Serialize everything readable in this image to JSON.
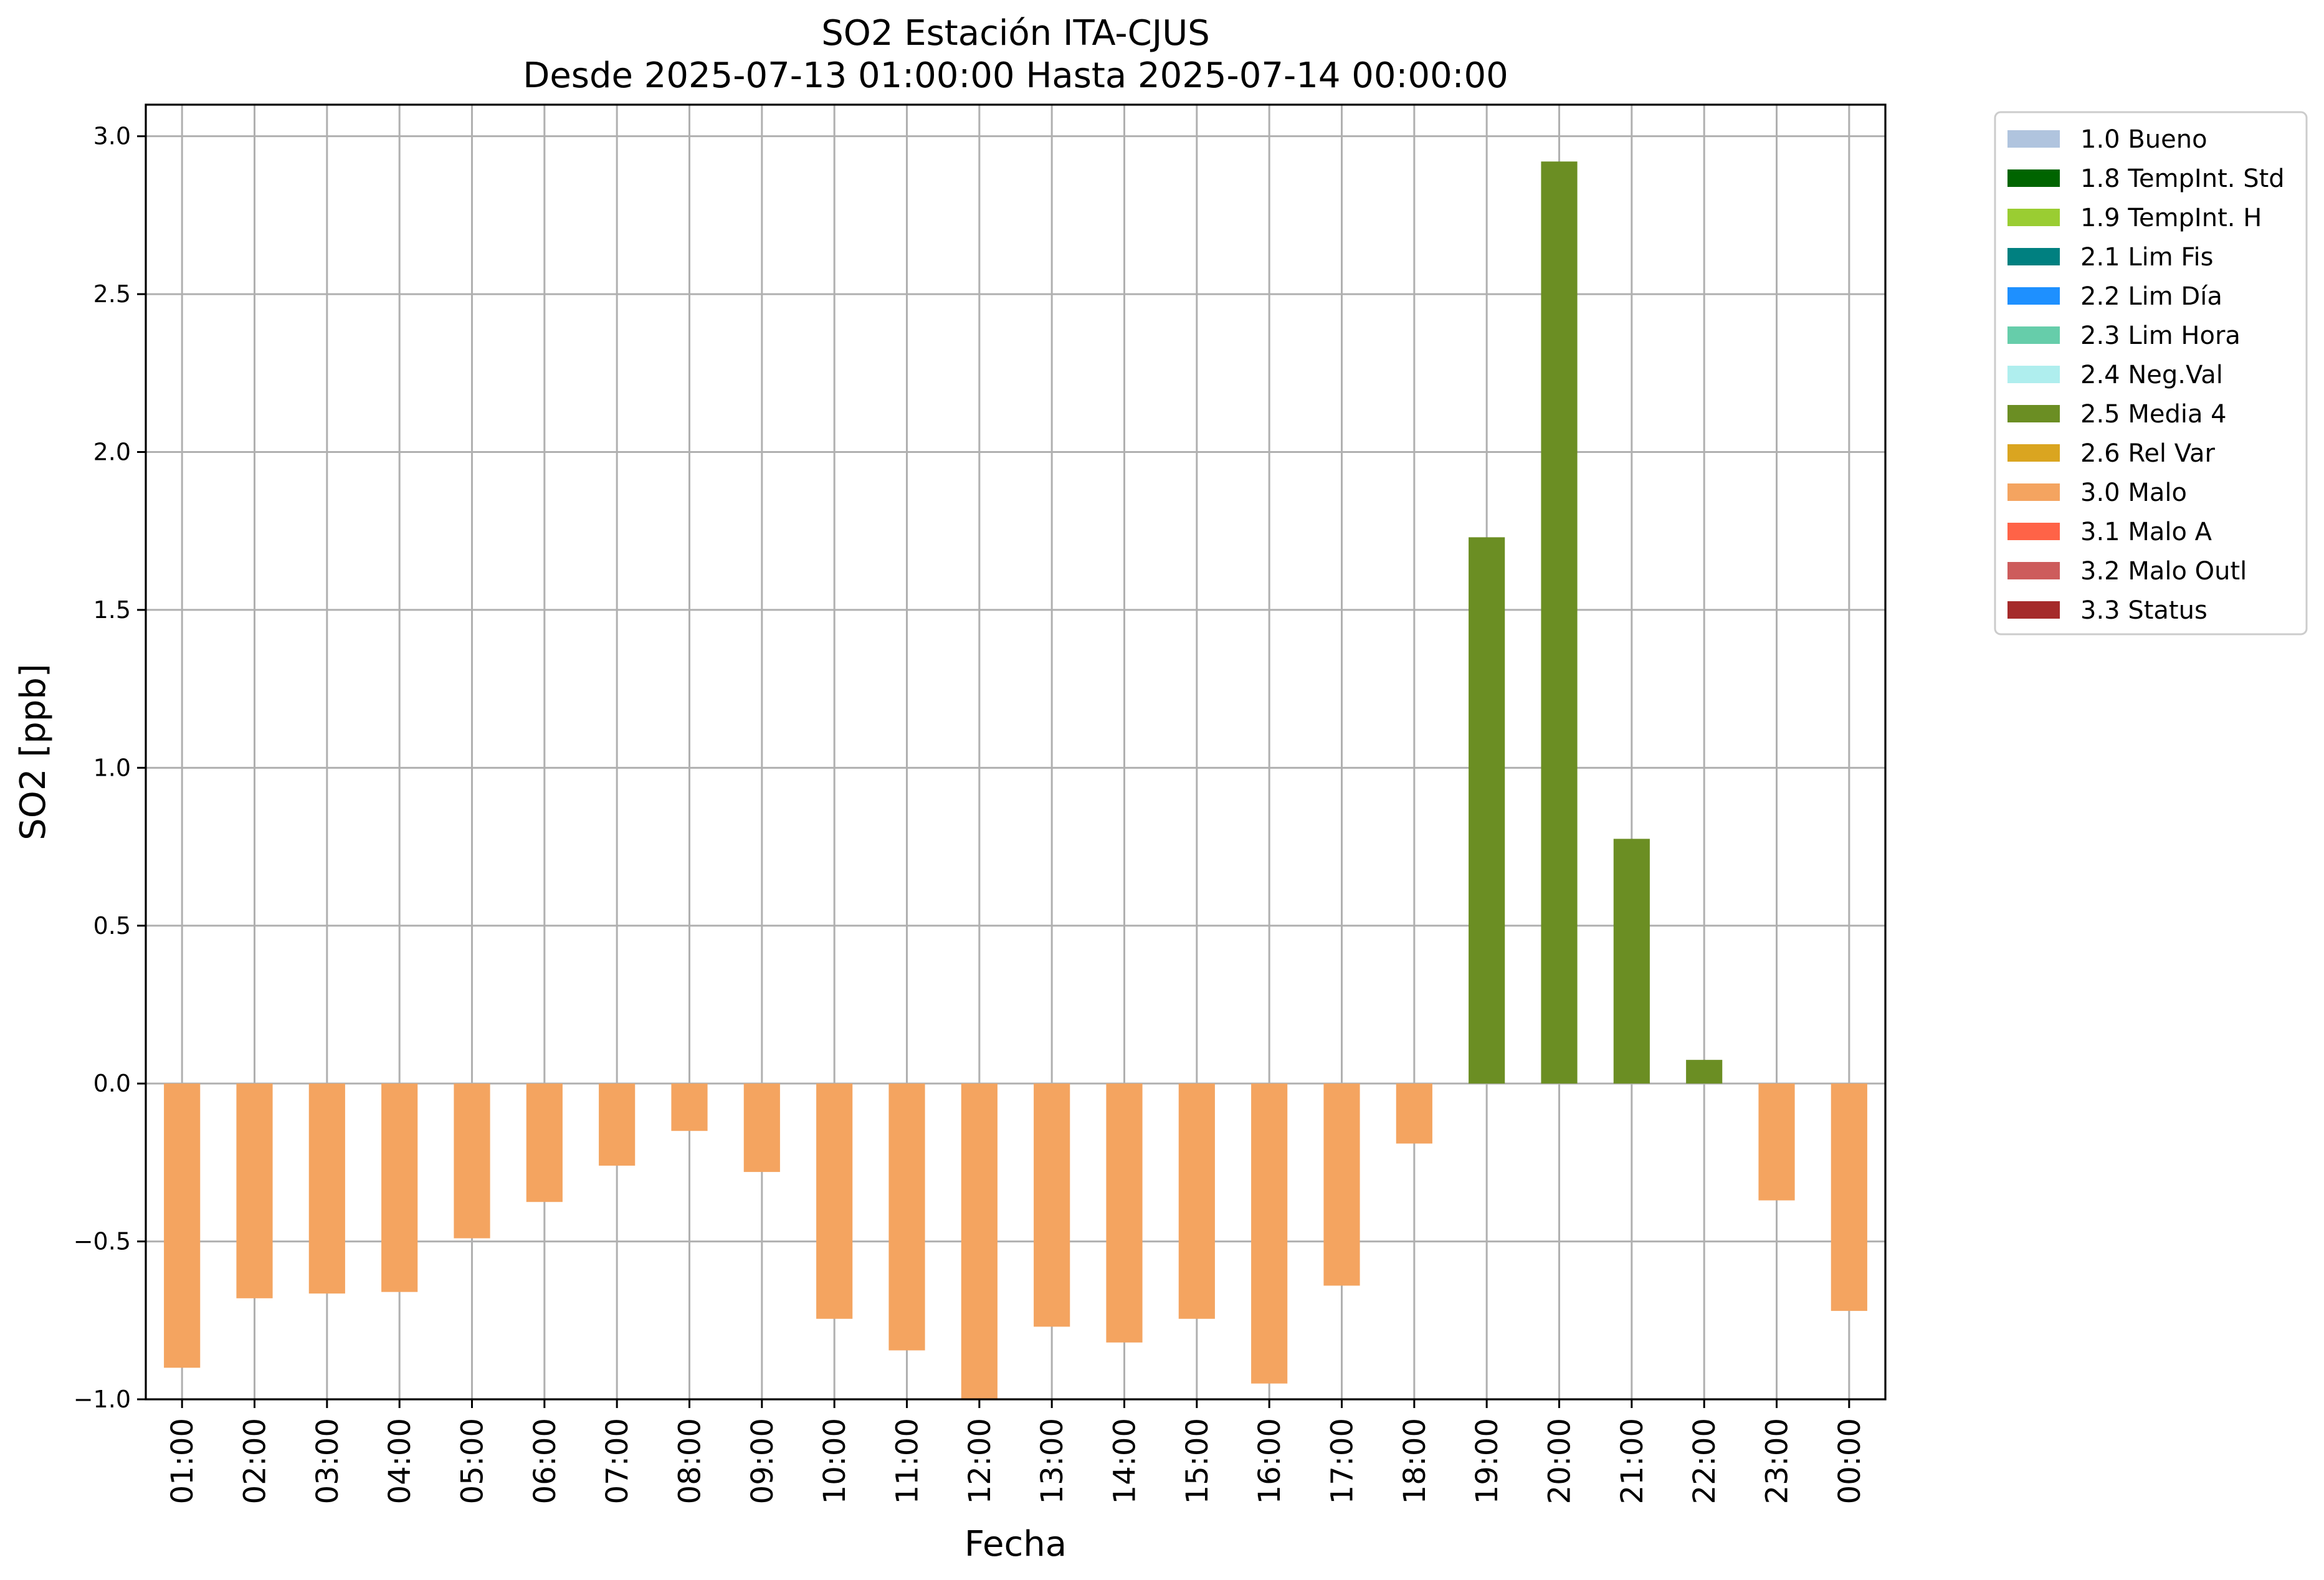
{
  "chart_data": {
    "type": "bar",
    "title_lines": [
      "SO2 Estación ITA-CJUS",
      "Desde 2025-07-13 01:00:00 Hasta 2025-07-14 00:00:00"
    ],
    "xlabel": "Fecha",
    "ylabel": "SO2 [ppb]",
    "ylim": [
      -1.0,
      3.1
    ],
    "yticks": [
      "−1.0",
      "−0.5",
      "0.0",
      "0.5",
      "1.0",
      "1.5",
      "2.0",
      "2.5",
      "3.0"
    ],
    "ytick_values": [
      -1.0,
      -0.5,
      0.0,
      0.5,
      1.0,
      1.5,
      2.0,
      2.5,
      3.0
    ],
    "grid": true,
    "legend_position": "outside-top-right",
    "categories": [
      "01:00",
      "02:00",
      "03:00",
      "04:00",
      "05:00",
      "06:00",
      "07:00",
      "08:00",
      "09:00",
      "10:00",
      "11:00",
      "12:00",
      "13:00",
      "14:00",
      "15:00",
      "16:00",
      "17:00",
      "18:00",
      "19:00",
      "20:00",
      "21:00",
      "22:00",
      "23:00",
      "00:00"
    ],
    "values": [
      -0.9,
      -0.68,
      -0.665,
      -0.66,
      -0.49,
      -0.375,
      -0.26,
      -0.15,
      -0.28,
      -0.745,
      -0.845,
      -1.0,
      -0.77,
      -0.82,
      -0.745,
      -0.95,
      -0.64,
      -0.19,
      1.73,
      2.92,
      0.775,
      0.075,
      -0.37,
      -0.72
    ],
    "flags": [
      "3.0 Malo",
      "3.0 Malo",
      "3.0 Malo",
      "3.0 Malo",
      "3.0 Malo",
      "3.0 Malo",
      "3.0 Malo",
      "3.0 Malo",
      "3.0 Malo",
      "3.0 Malo",
      "3.0 Malo",
      "3.0 Malo",
      "3.0 Malo",
      "3.0 Malo",
      "3.0 Malo",
      "3.0 Malo",
      "3.0 Malo",
      "3.0 Malo",
      "2.5 Media 4",
      "2.5 Media 4",
      "2.5 Media 4",
      "2.5 Media 4",
      "3.0 Malo",
      "3.0 Malo"
    ],
    "legend": [
      {
        "label": "1.0 Bueno",
        "color": "#b0c4de"
      },
      {
        "label": "1.8 TempInt. Std",
        "color": "#006400"
      },
      {
        "label": "1.9 TempInt. H",
        "color": "#9acd32"
      },
      {
        "label": "2.1 Lim Fis",
        "color": "#008080"
      },
      {
        "label": "2.2 Lim Día",
        "color": "#1e90ff"
      },
      {
        "label": "2.3 Lim Hora",
        "color": "#66cdaa"
      },
      {
        "label": "2.4 Neg.Val",
        "color": "#afeeee"
      },
      {
        "label": "2.5 Media 4",
        "color": "#6b8e23"
      },
      {
        "label": "2.6 Rel Var",
        "color": "#daa520"
      },
      {
        "label": "3.0 Malo",
        "color": "#f4a460"
      },
      {
        "label": "3.1 Malo A",
        "color": "#ff6347"
      },
      {
        "label": "3.2 Malo Outl",
        "color": "#cd5c5c"
      },
      {
        "label": "3.3 Status",
        "color": "#a52a2a"
      }
    ]
  }
}
